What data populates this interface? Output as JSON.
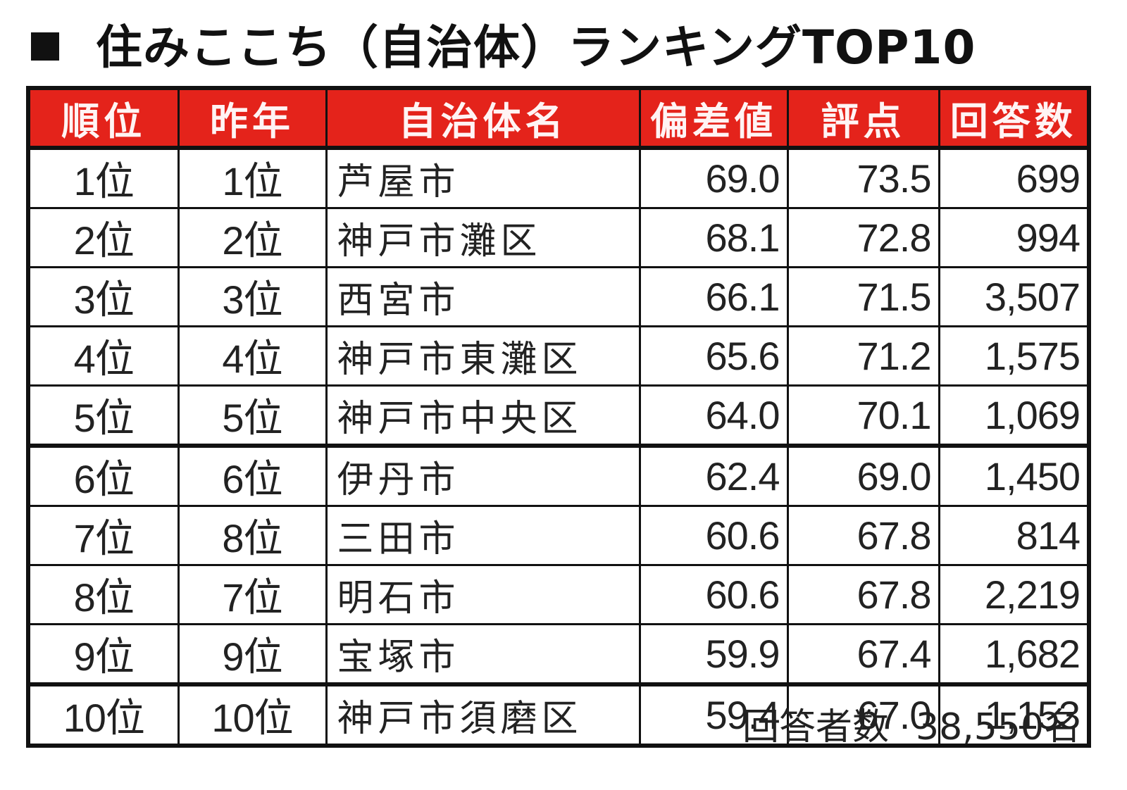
{
  "title": {
    "bullet_icon": "black-square",
    "text": "住みここち（自治体）ランキングTOP10"
  },
  "table": {
    "headers": {
      "rank": "順位",
      "previous_year": "昨年",
      "municipality": "自治体名",
      "deviation": "偏差値",
      "score": "評点",
      "responses": "回答数"
    },
    "header_color": "#e4231b",
    "rows": [
      {
        "rank": "1位",
        "previous_year": "1位",
        "municipality": "芦屋市",
        "deviation": "69.0",
        "score": "73.5",
        "responses": "699"
      },
      {
        "rank": "2位",
        "previous_year": "2位",
        "municipality": "神戸市灘区",
        "deviation": "68.1",
        "score": "72.8",
        "responses": "994"
      },
      {
        "rank": "3位",
        "previous_year": "3位",
        "municipality": "西宮市",
        "deviation": "66.1",
        "score": "71.5",
        "responses": "3,507"
      },
      {
        "rank": "4位",
        "previous_year": "4位",
        "municipality": "神戸市東灘区",
        "deviation": "65.6",
        "score": "71.2",
        "responses": "1,575"
      },
      {
        "rank": "5位",
        "previous_year": "5位",
        "municipality": "神戸市中央区",
        "deviation": "64.0",
        "score": "70.1",
        "responses": "1,069"
      },
      {
        "rank": "6位",
        "previous_year": "6位",
        "municipality": "伊丹市",
        "deviation": "62.4",
        "score": "69.0",
        "responses": "1,450"
      },
      {
        "rank": "7位",
        "previous_year": "8位",
        "municipality": "三田市",
        "deviation": "60.6",
        "score": "67.8",
        "responses": "814"
      },
      {
        "rank": "8位",
        "previous_year": "7位",
        "municipality": "明石市",
        "deviation": "60.6",
        "score": "67.8",
        "responses": "2,219"
      },
      {
        "rank": "9位",
        "previous_year": "9位",
        "municipality": "宝塚市",
        "deviation": "59.9",
        "score": "67.4",
        "responses": "1,682"
      },
      {
        "rank": "10位",
        "previous_year": "10位",
        "municipality": "神戸市須磨区",
        "deviation": "59.4",
        "score": "67.0",
        "responses": "1,153"
      }
    ]
  },
  "footnote": {
    "label": "回答者数",
    "value": "38,550名"
  }
}
